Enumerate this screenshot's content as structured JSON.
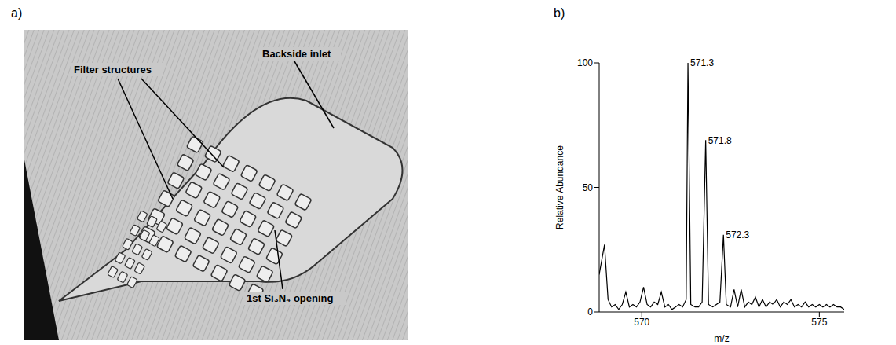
{
  "panel_labels": [
    "a)",
    "b)"
  ],
  "image": {
    "labels": [
      "Backside inlet",
      "Filter structures",
      "1st Si₃N₄ opening"
    ]
  },
  "chart_data": {
    "type": "line",
    "xlabel": "m/z",
    "ylabel": "Relative Abundance",
    "color": "#000000",
    "xlim": [
      568.8,
      575.7
    ],
    "ylim": [
      0,
      100
    ],
    "xticks": [
      570,
      575
    ],
    "yticks": [
      0,
      50,
      100
    ],
    "x": [
      568.8,
      568.95,
      569.05,
      569.15,
      569.25,
      569.35,
      569.45,
      569.55,
      569.65,
      569.75,
      569.85,
      569.95,
      570.05,
      570.15,
      570.25,
      570.35,
      570.45,
      570.55,
      570.65,
      570.75,
      570.85,
      570.95,
      571.05,
      571.15,
      571.25,
      571.3,
      571.38,
      571.5,
      571.6,
      571.7,
      571.8,
      571.88,
      572.0,
      572.1,
      572.2,
      572.3,
      572.38,
      572.5,
      572.6,
      572.7,
      572.8,
      572.9,
      573.0,
      573.1,
      573.2,
      573.3,
      573.4,
      573.5,
      573.6,
      573.7,
      573.8,
      573.9,
      574.0,
      574.1,
      574.2,
      574.3,
      574.4,
      574.5,
      574.6,
      574.7,
      574.8,
      574.9,
      575.0,
      575.1,
      575.2,
      575.3,
      575.4,
      575.5,
      575.6,
      575.7
    ],
    "values": [
      15,
      27,
      5,
      2,
      3,
      1,
      3,
      8,
      2,
      3,
      2,
      4,
      10,
      3,
      2,
      4,
      3,
      8,
      2,
      3,
      1,
      2,
      3,
      2,
      5,
      100,
      3,
      2,
      2,
      4,
      69,
      3,
      2,
      3,
      4,
      31,
      3,
      2,
      9,
      2,
      9,
      2,
      4,
      3,
      6,
      2,
      5,
      2,
      4,
      3,
      5,
      2,
      4,
      3,
      5,
      2,
      3,
      2,
      4,
      2,
      3,
      2,
      3,
      2,
      3,
      2,
      3,
      2,
      2,
      1
    ],
    "annotations": [
      {
        "text": "571.3",
        "x": 571.3,
        "y": 100
      },
      {
        "text": "571.8",
        "x": 571.8,
        "y": 69
      },
      {
        "text": "572.3",
        "x": 572.3,
        "y": 31
      }
    ]
  }
}
